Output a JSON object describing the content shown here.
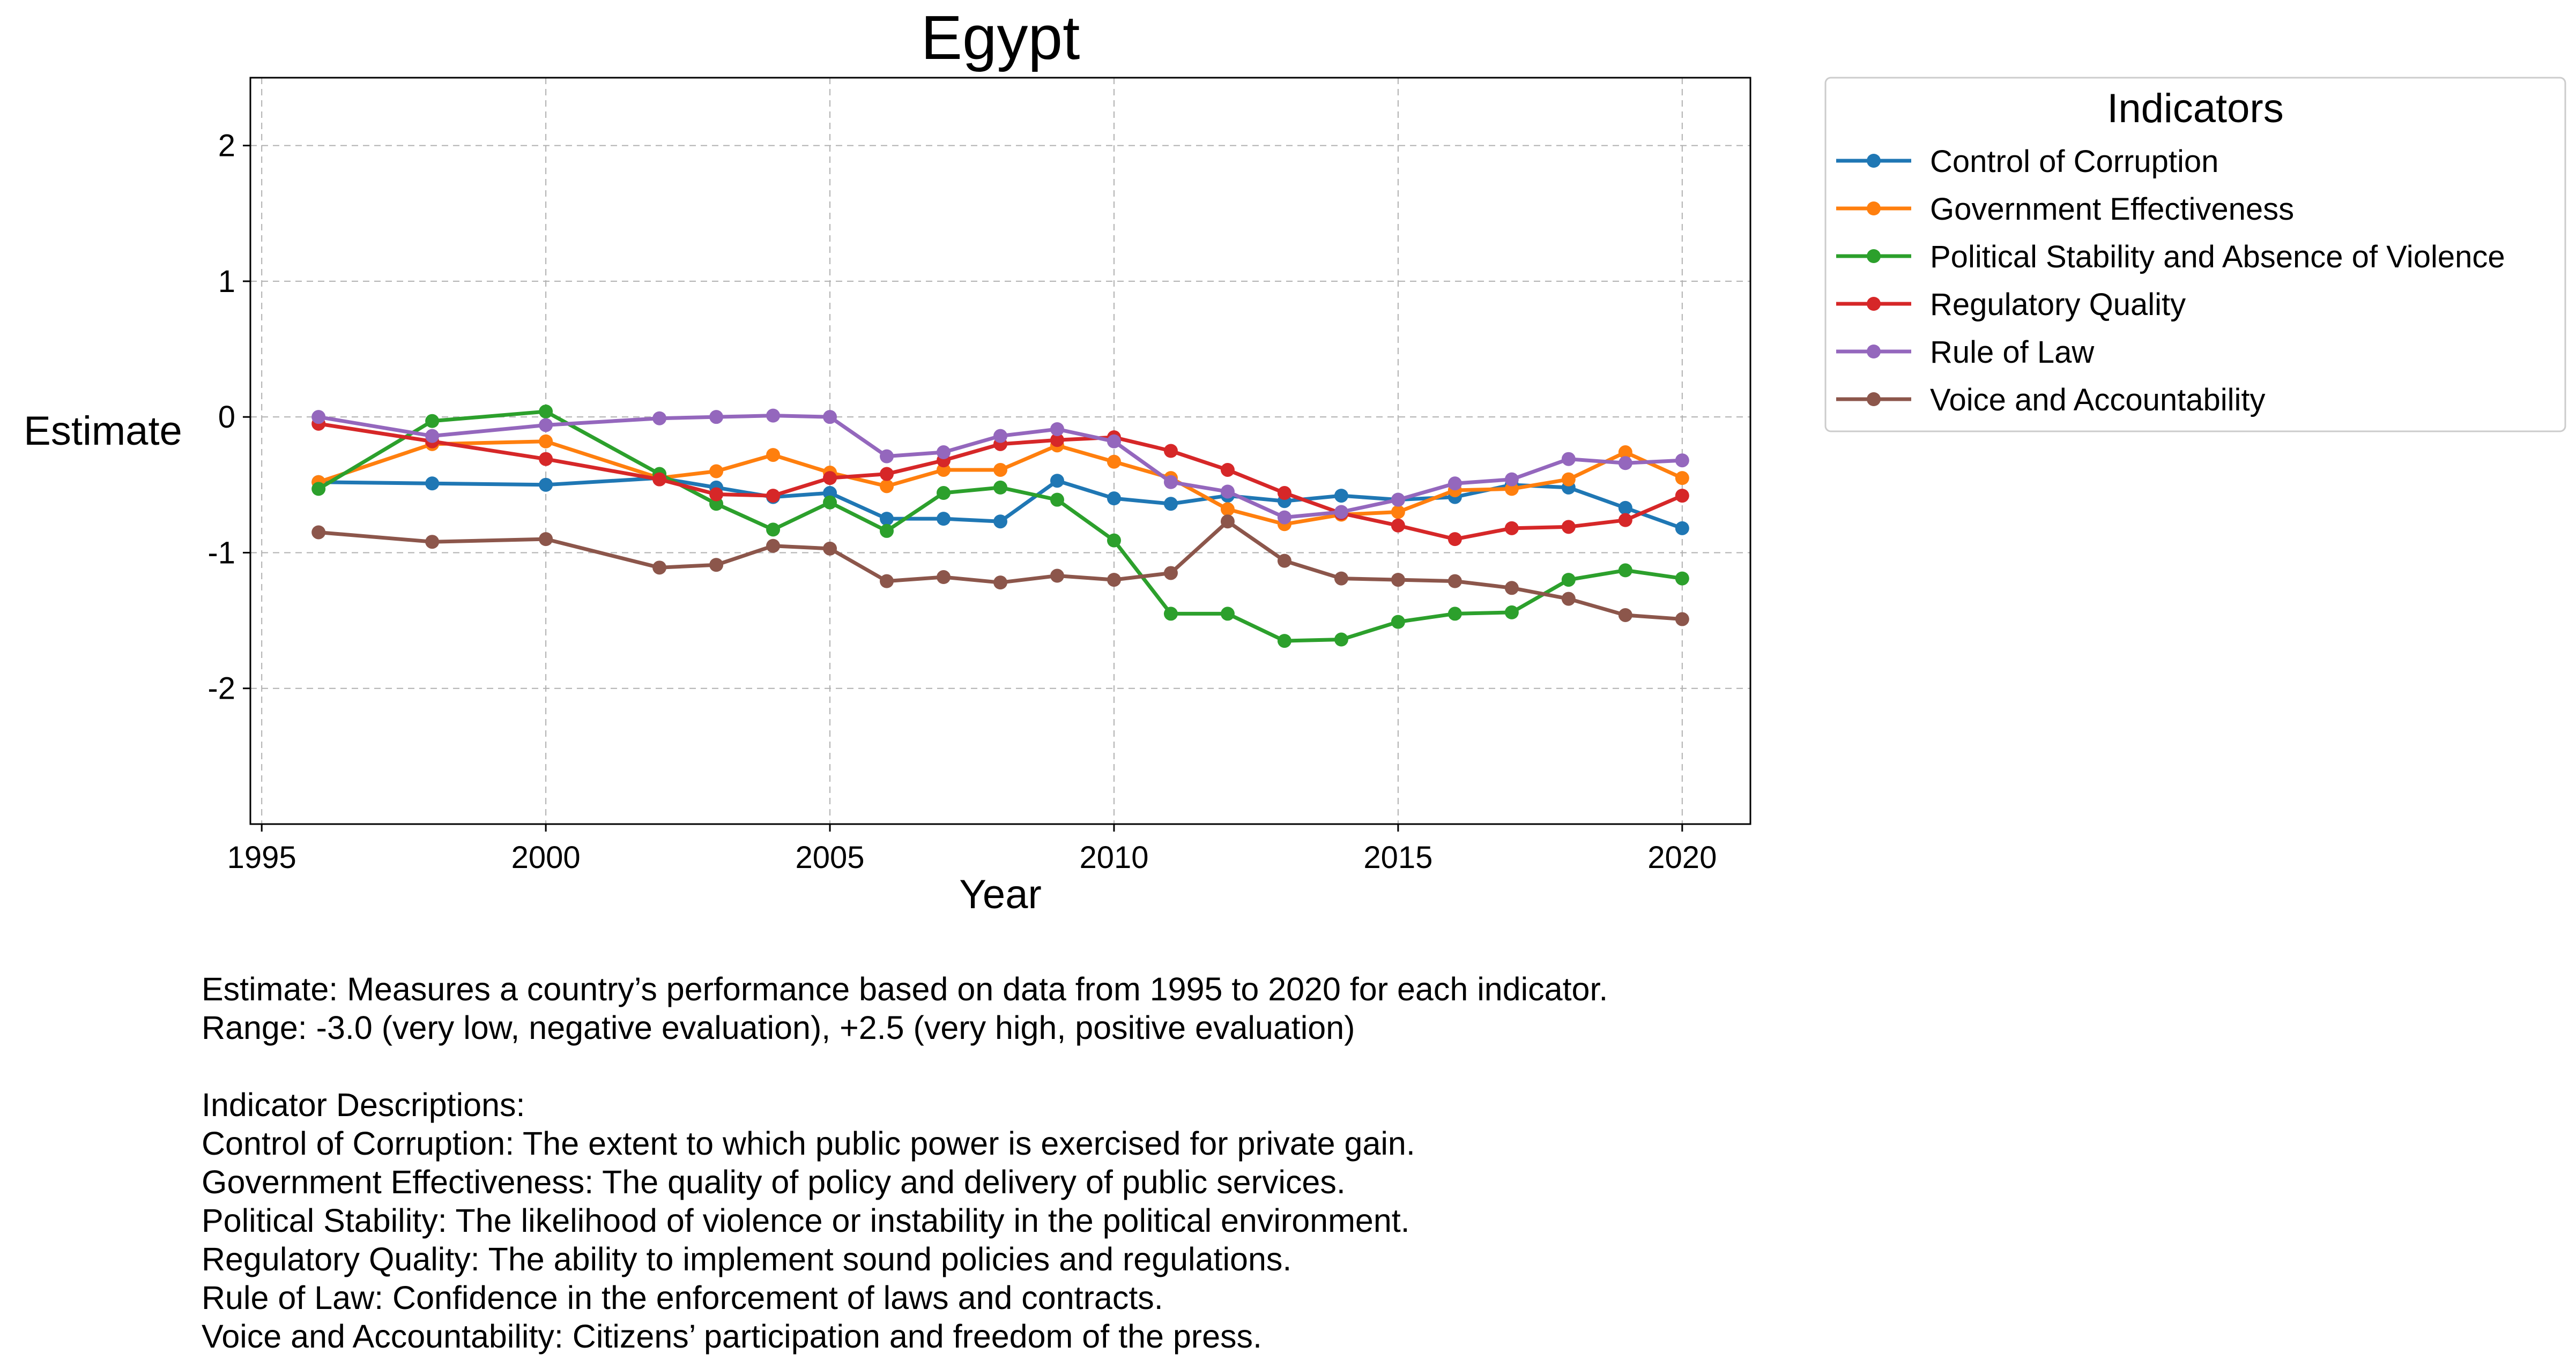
{
  "chart_data": {
    "type": "line",
    "title": "Egypt",
    "xlabel": "Year",
    "ylabel": "Estimate",
    "xlim": [
      1995,
      2020
    ],
    "ylim": [
      -3.0,
      2.5
    ],
    "x_ticks": [
      1995,
      2000,
      2005,
      2010,
      2015,
      2020
    ],
    "y_ticks": [
      -2,
      -1,
      0,
      1,
      2
    ],
    "grid": true,
    "legend_title": "Indicators",
    "legend_position": "outside-top-right",
    "x": [
      1996,
      1998,
      2000,
      2002,
      2003,
      2004,
      2005,
      2006,
      2007,
      2008,
      2009,
      2010,
      2011,
      2012,
      2013,
      2014,
      2015,
      2016,
      2017,
      2018,
      2019,
      2020
    ],
    "series": [
      {
        "name": "Control of Corruption",
        "color": "#1f77b4",
        "values": [
          -0.48,
          -0.49,
          -0.5,
          -0.45,
          -0.52,
          -0.59,
          -0.56,
          -0.75,
          -0.75,
          -0.77,
          -0.47,
          -0.6,
          -0.64,
          -0.58,
          -0.62,
          -0.58,
          -0.61,
          -0.59,
          -0.5,
          -0.52,
          -0.67,
          -0.82
        ]
      },
      {
        "name": "Government Effectiveness",
        "color": "#ff7f0e",
        "values": [
          -0.48,
          -0.2,
          -0.18,
          -0.45,
          -0.4,
          -0.28,
          -0.41,
          -0.51,
          -0.39,
          -0.39,
          -0.21,
          -0.33,
          -0.45,
          -0.68,
          -0.79,
          -0.72,
          -0.7,
          -0.54,
          -0.53,
          -0.46,
          -0.26,
          -0.45
        ]
      },
      {
        "name": "Political Stability and Absence of Violence",
        "color": "#2ca02c",
        "values": [
          -0.53,
          -0.03,
          0.04,
          -0.42,
          -0.64,
          -0.83,
          -0.63,
          -0.84,
          -0.56,
          -0.52,
          -0.61,
          -0.91,
          -1.45,
          -1.45,
          -1.65,
          -1.64,
          -1.51,
          -1.45,
          -1.44,
          -1.2,
          -1.13,
          -1.19
        ]
      },
      {
        "name": "Regulatory Quality",
        "color": "#d62728",
        "values": [
          -0.05,
          -0.18,
          -0.31,
          -0.46,
          -0.57,
          -0.58,
          -0.45,
          -0.42,
          -0.32,
          -0.2,
          -0.17,
          -0.15,
          -0.25,
          -0.39,
          -0.56,
          -0.71,
          -0.8,
          -0.9,
          -0.82,
          -0.81,
          -0.76,
          -0.58
        ]
      },
      {
        "name": "Rule of Law",
        "color": "#9467bd",
        "values": [
          0.0,
          -0.14,
          -0.06,
          -0.01,
          0.0,
          0.01,
          0.0,
          -0.29,
          -0.26,
          -0.14,
          -0.09,
          -0.18,
          -0.48,
          -0.55,
          -0.74,
          -0.7,
          -0.61,
          -0.49,
          -0.46,
          -0.31,
          -0.34,
          -0.32
        ]
      },
      {
        "name": "Voice and Accountability",
        "color": "#8c564b",
        "values": [
          -0.85,
          -0.92,
          -0.9,
          -1.11,
          -1.09,
          -0.95,
          -0.97,
          -1.21,
          -1.18,
          -1.22,
          -1.17,
          -1.2,
          -1.15,
          -0.77,
          -1.06,
          -1.19,
          -1.2,
          -1.21,
          -1.26,
          -1.34,
          -1.46,
          -1.49
        ]
      }
    ]
  },
  "notes": {
    "line1": "Estimate: Measures a country’s performance based on data from 1995 to 2020 for each indicator.",
    "line2": "Range: -3.0 (very low, negative evaluation), +2.5 (very high, positive evaluation)",
    "heading": "Indicator Descriptions:",
    "desc": [
      "Control of Corruption: The extent to which public power is exercised for private gain.",
      "Government Effectiveness: The quality of policy and delivery of public services.",
      "Political Stability: The likelihood of violence or instability in the political environment.",
      "Regulatory Quality: The ability to implement sound policies and regulations.",
      "Rule of Law: Confidence in the enforcement of laws and contracts.",
      "Voice and Accountability: Citizens’ participation and freedom of the press."
    ]
  }
}
